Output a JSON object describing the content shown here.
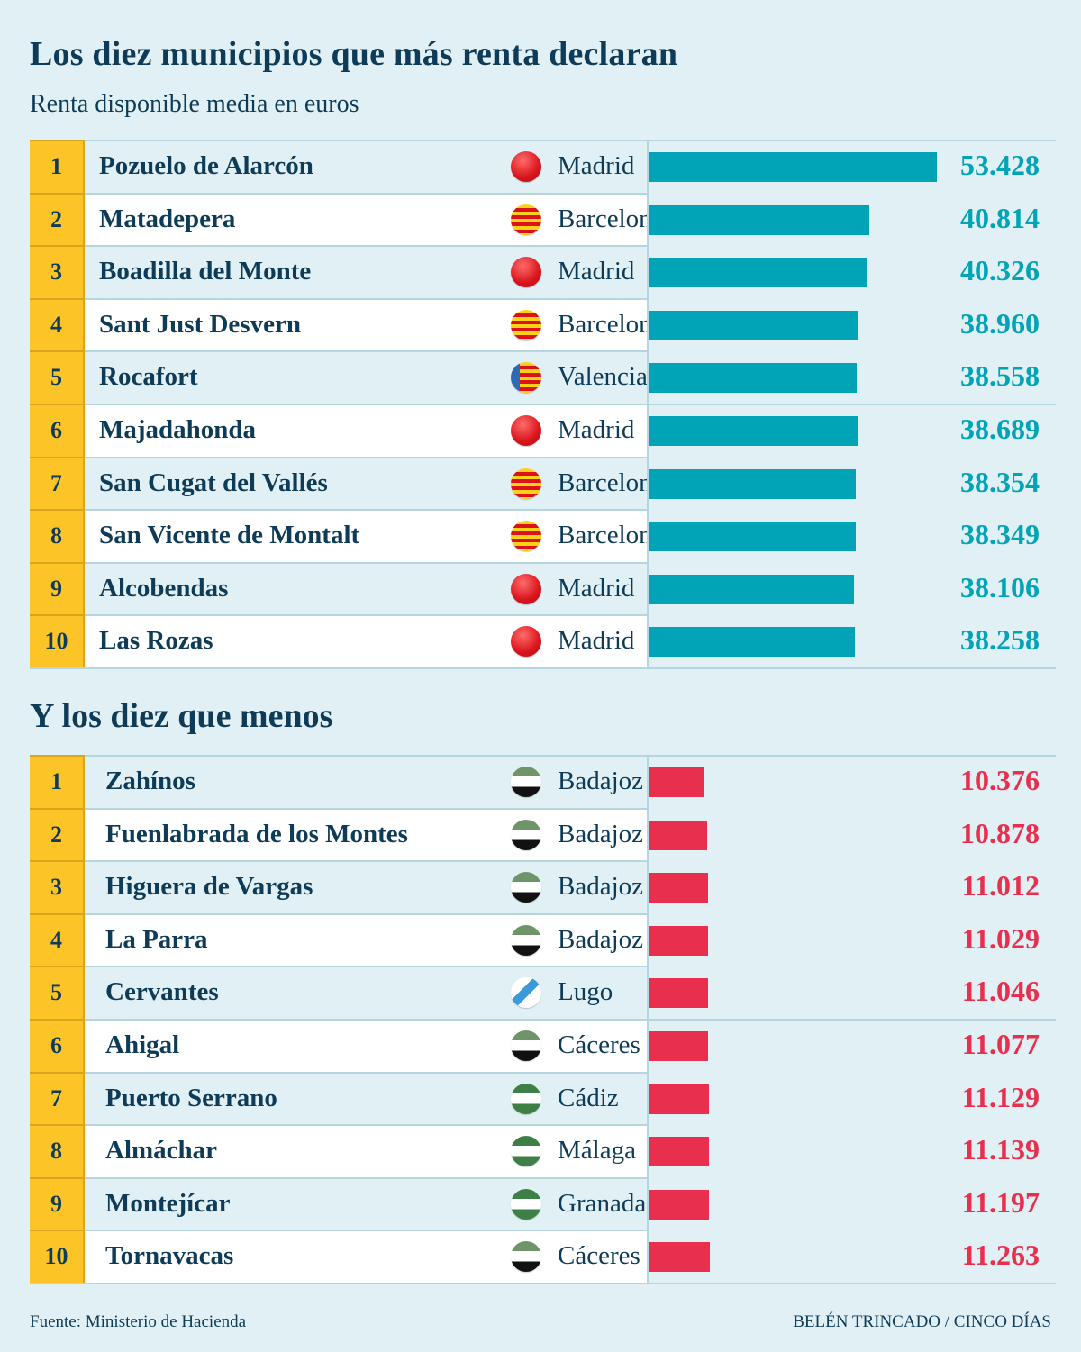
{
  "title": "Los diez municipios que más renta declaran",
  "subtitle": "Renta disponible media en euros",
  "title_bottom": "Y los diez que menos",
  "source": "Fuente: Ministerio de Hacienda",
  "credit": "BELÉN TRINCADO / CINCO DÍAS",
  "colors": {
    "top_bar": "#00a4b6",
    "bottom_bar": "#e8304e",
    "rank_bg": "#fcc427",
    "text": "#0e3b57"
  },
  "chart_data": [
    {
      "type": "bar",
      "title": "Los diez municipios que más renta declaran",
      "subtitle": "Renta disponible media en euros",
      "rows": [
        {
          "rank": "1",
          "municipality": "Pozuelo de Alarcón",
          "province": "Madrid",
          "flag": "madrid-flag-icon",
          "value": 53428,
          "label": "53.428"
        },
        {
          "rank": "2",
          "municipality": "Matadepera",
          "province": "Barcelona",
          "flag": "catalonia-flag-icon",
          "value": 40814,
          "label": "40.814"
        },
        {
          "rank": "3",
          "municipality": "Boadilla del Monte",
          "province": "Madrid",
          "flag": "madrid-flag-icon",
          "value": 40326,
          "label": "40.326"
        },
        {
          "rank": "4",
          "municipality": "Sant Just Desvern",
          "province": "Barcelona",
          "flag": "catalonia-flag-icon",
          "value": 38960,
          "label": "38.960"
        },
        {
          "rank": "5",
          "municipality": "Rocafort",
          "province": "Valencia",
          "flag": "valencia-flag-icon",
          "value": 38558,
          "label": "38.558"
        },
        {
          "rank": "6",
          "municipality": "Majadahonda",
          "province": "Madrid",
          "flag": "madrid-flag-icon",
          "value": 38689,
          "label": "38.689"
        },
        {
          "rank": "7",
          "municipality": "San Cugat del Vallés",
          "province": "Barcelona",
          "flag": "catalonia-flag-icon",
          "value": 38354,
          "label": "38.354"
        },
        {
          "rank": "8",
          "municipality": "San Vicente de Montalt",
          "province": "Barcelona",
          "flag": "catalonia-flag-icon",
          "value": 38349,
          "label": "38.349"
        },
        {
          "rank": "9",
          "municipality": "Alcobendas",
          "province": "Madrid",
          "flag": "madrid-flag-icon",
          "value": 38106,
          "label": "38.106"
        },
        {
          "rank": "10",
          "municipality": "Las Rozas",
          "province": "Madrid",
          "flag": "madrid-flag-icon",
          "value": 38258,
          "label": "38.258"
        }
      ]
    },
    {
      "type": "bar",
      "title": "Y los diez que menos",
      "rows": [
        {
          "rank": "1",
          "municipality": "Zahínos",
          "province": "Badajoz",
          "flag": "extremadura-flag-icon",
          "value": 10376,
          "label": "10.376"
        },
        {
          "rank": "2",
          "municipality": "Fuenlabrada de los Montes",
          "province": "Badajoz",
          "flag": "extremadura-flag-icon",
          "value": 10878,
          "label": "10.878"
        },
        {
          "rank": "3",
          "municipality": "Higuera de Vargas",
          "province": "Badajoz",
          "flag": "extremadura-flag-icon",
          "value": 11012,
          "label": "11.012"
        },
        {
          "rank": "4",
          "municipality": "La Parra",
          "province": "Badajoz",
          "flag": "extremadura-flag-icon",
          "value": 11029,
          "label": "11.029"
        },
        {
          "rank": "5",
          "municipality": "Cervantes",
          "province": "Lugo",
          "flag": "galicia-flag-icon",
          "value": 11046,
          "label": "11.046"
        },
        {
          "rank": "6",
          "municipality": "Ahigal",
          "province": "Cáceres",
          "flag": "extremadura-flag-icon",
          "value": 11077,
          "label": "11.077"
        },
        {
          "rank": "7",
          "municipality": "Puerto Serrano",
          "province": "Cádiz",
          "flag": "andalusia-flag-icon",
          "value": 11129,
          "label": "11.129"
        },
        {
          "rank": "8",
          "municipality": "Almáchar",
          "province": "Málaga",
          "flag": "andalusia-flag-icon",
          "value": 11139,
          "label": "11.139"
        },
        {
          "rank": "9",
          "municipality": "Montejícar",
          "province": "Granada",
          "flag": "andalusia-flag-icon",
          "value": 11197,
          "label": "11.197"
        },
        {
          "rank": "10",
          "municipality": "Tornavacas",
          "province": "Cáceres",
          "flag": "extremadura-flag-icon",
          "value": 11263,
          "label": "11.263"
        }
      ]
    }
  ]
}
